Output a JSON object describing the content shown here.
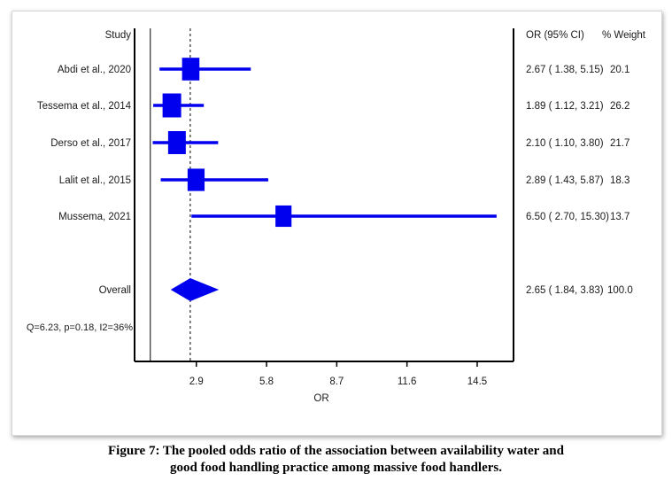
{
  "chart_data": {
    "type": "forest",
    "header_study": "Study",
    "header_ci": "OR (95% CI)",
    "header_weight": "% Weight",
    "xlabel": "OR",
    "xticks": [
      "2.9",
      "5.8",
      "8.7",
      "11.6",
      "14.5"
    ],
    "xlim": [
      0.35,
      16.0
    ],
    "null_line": 1,
    "studies": [
      {
        "label": "Abdi et al., 2020",
        "or": 2.67,
        "lo": 1.38,
        "hi": 5.15,
        "ci_text": "2.67 ( 1.38, 5.15)",
        "weight": "20.1"
      },
      {
        "label": "Tessema et al., 2014",
        "or": 1.89,
        "lo": 1.12,
        "hi": 3.21,
        "ci_text": "1.89 ( 1.12, 3.21)",
        "weight": "26.2"
      },
      {
        "label": "Derso et al., 2017",
        "or": 2.1,
        "lo": 1.1,
        "hi": 3.8,
        "ci_text": "2.10 ( 1.10, 3.80)",
        "weight": "21.7"
      },
      {
        "label": "Lalit et al., 2015",
        "or": 2.89,
        "lo": 1.43,
        "hi": 5.87,
        "ci_text": "2.89 ( 1.43, 5.87)",
        "weight": "18.3"
      },
      {
        "label": "Mussema, 2021",
        "or": 6.5,
        "lo": 2.7,
        "hi": 15.3,
        "ci_text": "6.50 ( 2.70, 15.30)",
        "weight": "13.7"
      }
    ],
    "overall": {
      "label": "Overall",
      "or": 2.65,
      "lo": 1.84,
      "hi": 3.83,
      "ci_text": "2.65 ( 1.84, 3.83)",
      "weight": "100.0"
    },
    "heterogeneity": "Q=6.23, p=0.18, I2=36%",
    "color": "#0000ee"
  },
  "caption": {
    "line1": "Figure 7: The pooled odds ratio of the association between availability water and",
    "line2": "good food handling practice among massive food handlers."
  }
}
